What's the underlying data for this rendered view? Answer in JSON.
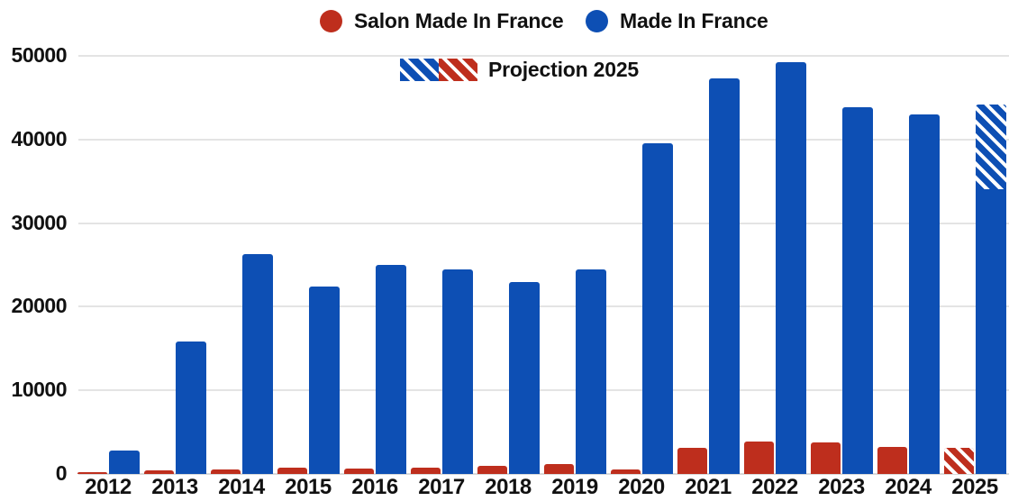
{
  "legend": {
    "salon_label": "Salon Made In France",
    "mif_label": "Made In France",
    "projection_label": "Projection 2025"
  },
  "colors": {
    "salon_red": "#be2e1d",
    "mif_blue": "#0d4fb4",
    "grid": "#e4e4e4",
    "text": "#111111",
    "background": "#ffffff"
  },
  "chart_data": {
    "type": "bar",
    "title": "",
    "xlabel": "",
    "ylabel": "",
    "grid": "horizontal",
    "legend_position": "top-center",
    "categories": [
      "2012",
      "2013",
      "2014",
      "2015",
      "2016",
      "2017",
      "2018",
      "2019",
      "2020",
      "2021",
      "2022",
      "2023",
      "2024",
      "2025"
    ],
    "series": [
      {
        "name": "Salon Made In France",
        "color": "#be2e1d",
        "values": [
          200,
          400,
          500,
          800,
          700,
          750,
          950,
          1150,
          550,
          3100,
          3900,
          3800,
          3200,
          3100
        ]
      },
      {
        "name": "Made In France",
        "color": "#0d4fb4",
        "values": [
          2800,
          15800,
          26300,
          22400,
          25000,
          24500,
          23000,
          24500,
          39500,
          47300,
          49300,
          43900,
          43000,
          44200
        ]
      }
    ],
    "projection": {
      "category": "2025",
      "label": "Projection 2025",
      "mif_solid_until": 34000,
      "salon_solid_until": 0
    },
    "yticks": [
      0,
      10000,
      20000,
      30000,
      40000,
      50000
    ],
    "ylim": [
      0,
      50000
    ]
  }
}
